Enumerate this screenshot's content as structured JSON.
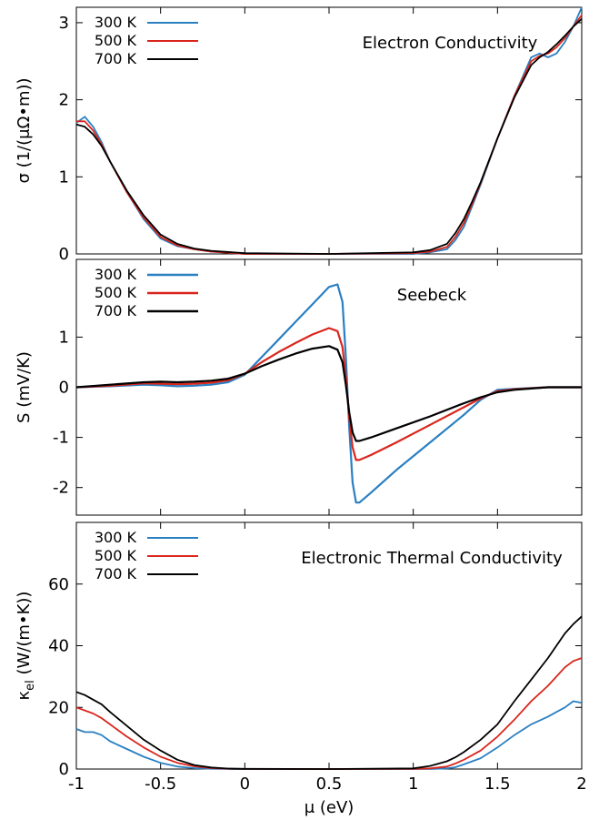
{
  "chart_data": [
    {
      "type": "line",
      "title": "Electron Conductivity",
      "xlabel": "",
      "ylabel": "σ (1/(μΩ•m))",
      "xlim": [
        -1,
        2
      ],
      "ylim": [
        0,
        3.2
      ],
      "yticks": [
        0,
        1,
        2,
        3
      ],
      "xticks": [
        -1,
        -0.5,
        0,
        0.5,
        1,
        1.5,
        2
      ],
      "show_xtick_labels": false,
      "legend": "top-left",
      "series": [
        {
          "name": "300 K",
          "color": "#2a7fc1",
          "x": [
            -1,
            -0.95,
            -0.9,
            -0.85,
            -0.8,
            -0.7,
            -0.6,
            -0.5,
            -0.4,
            -0.3,
            -0.2,
            0,
            0.5,
            1,
            1.1,
            1.2,
            1.25,
            1.3,
            1.35,
            1.4,
            1.5,
            1.6,
            1.7,
            1.75,
            1.8,
            1.85,
            1.9,
            1.95,
            2
          ],
          "y": [
            1.7,
            1.78,
            1.65,
            1.45,
            1.2,
            0.8,
            0.45,
            0.2,
            0.1,
            0.06,
            0.03,
            0.0,
            0.0,
            0.0,
            0.02,
            0.06,
            0.18,
            0.35,
            0.62,
            0.9,
            1.5,
            2.05,
            2.55,
            2.6,
            2.55,
            2.6,
            2.75,
            2.95,
            3.25
          ]
        },
        {
          "name": "500 K",
          "color": "#d9261c",
          "x": [
            -1,
            -0.95,
            -0.9,
            -0.85,
            -0.8,
            -0.7,
            -0.6,
            -0.5,
            -0.4,
            -0.3,
            -0.2,
            0,
            0.5,
            1,
            1.1,
            1.2,
            1.25,
            1.3,
            1.35,
            1.4,
            1.5,
            1.6,
            1.7,
            1.75,
            1.8,
            1.85,
            1.9,
            1.95,
            2
          ],
          "y": [
            1.72,
            1.72,
            1.6,
            1.42,
            1.2,
            0.8,
            0.47,
            0.22,
            0.11,
            0.06,
            0.03,
            0.0,
            0.0,
            0.01,
            0.03,
            0.09,
            0.22,
            0.4,
            0.65,
            0.92,
            1.5,
            2.05,
            2.5,
            2.57,
            2.6,
            2.68,
            2.8,
            2.95,
            3.1
          ]
        },
        {
          "name": "700 K",
          "color": "#000000",
          "x": [
            -1,
            -0.95,
            -0.9,
            -0.85,
            -0.8,
            -0.7,
            -0.6,
            -0.5,
            -0.4,
            -0.3,
            -0.2,
            0,
            0.5,
            1,
            1.1,
            1.2,
            1.25,
            1.3,
            1.35,
            1.4,
            1.5,
            1.6,
            1.7,
            1.75,
            1.8,
            1.85,
            1.9,
            1.95,
            2
          ],
          "y": [
            1.68,
            1.65,
            1.55,
            1.4,
            1.2,
            0.82,
            0.5,
            0.25,
            0.13,
            0.07,
            0.04,
            0.01,
            0.0,
            0.02,
            0.05,
            0.13,
            0.27,
            0.45,
            0.68,
            0.93,
            1.5,
            2.03,
            2.45,
            2.55,
            2.62,
            2.72,
            2.83,
            2.95,
            3.05
          ]
        }
      ]
    },
    {
      "type": "line",
      "title": "Seebeck",
      "xlabel": "",
      "ylabel": "S (mV/K)",
      "xlim": [
        -1,
        2
      ],
      "ylim": [
        -2.55,
        2.55
      ],
      "yticks": [
        -2,
        -1,
        0,
        1
      ],
      "xticks": [
        -1,
        -0.5,
        0,
        0.5,
        1,
        1.5,
        2
      ],
      "show_xtick_labels": false,
      "legend": "top-left",
      "series": [
        {
          "name": "300 K",
          "color": "#2a7fc1",
          "x": [
            -1,
            -0.8,
            -0.6,
            -0.5,
            -0.4,
            -0.3,
            -0.2,
            -0.1,
            0,
            0.1,
            0.2,
            0.3,
            0.4,
            0.5,
            0.55,
            0.58,
            0.6,
            0.62,
            0.64,
            0.66,
            0.68,
            0.75,
            0.9,
            1.1,
            1.3,
            1.4,
            1.5,
            1.6,
            1.8,
            2
          ],
          "y": [
            0,
            0.02,
            0.05,
            0.04,
            0.02,
            0.03,
            0.05,
            0.1,
            0.25,
            0.6,
            0.95,
            1.3,
            1.65,
            2.0,
            2.05,
            1.7,
            0.6,
            -0.8,
            -1.9,
            -2.3,
            -2.3,
            -2.1,
            -1.65,
            -1.1,
            -0.55,
            -0.25,
            -0.05,
            -0.03,
            0,
            0
          ]
        },
        {
          "name": "500 K",
          "color": "#d9261c",
          "x": [
            -1,
            -0.8,
            -0.6,
            -0.5,
            -0.4,
            -0.3,
            -0.2,
            -0.1,
            0,
            0.1,
            0.2,
            0.3,
            0.4,
            0.5,
            0.55,
            0.58,
            0.6,
            0.62,
            0.64,
            0.66,
            0.68,
            0.75,
            0.9,
            1.1,
            1.3,
            1.4,
            1.5,
            1.6,
            1.8,
            2
          ],
          "y": [
            0,
            0.03,
            0.08,
            0.07,
            0.06,
            0.07,
            0.09,
            0.14,
            0.27,
            0.5,
            0.7,
            0.88,
            1.05,
            1.18,
            1.12,
            0.8,
            0.2,
            -0.6,
            -1.2,
            -1.45,
            -1.45,
            -1.35,
            -1.1,
            -0.75,
            -0.4,
            -0.22,
            -0.08,
            -0.04,
            0,
            0
          ]
        },
        {
          "name": "700 K",
          "color": "#000000",
          "x": [
            -1,
            -0.8,
            -0.6,
            -0.5,
            -0.4,
            -0.3,
            -0.2,
            -0.1,
            0,
            0.1,
            0.2,
            0.3,
            0.4,
            0.5,
            0.55,
            0.58,
            0.6,
            0.62,
            0.64,
            0.66,
            0.68,
            0.75,
            0.9,
            1.1,
            1.3,
            1.4,
            1.5,
            1.6,
            1.8,
            2
          ],
          "y": [
            0,
            0.05,
            0.1,
            0.11,
            0.1,
            0.11,
            0.13,
            0.17,
            0.27,
            0.42,
            0.55,
            0.67,
            0.77,
            0.82,
            0.75,
            0.5,
            0.05,
            -0.5,
            -0.9,
            -1.07,
            -1.07,
            -1.0,
            -0.82,
            -0.58,
            -0.32,
            -0.2,
            -0.1,
            -0.05,
            0,
            0
          ]
        }
      ]
    },
    {
      "type": "line",
      "title": "Electronic Thermal Conductivity",
      "xlabel": "μ (eV)",
      "ylabel_main": "κ",
      "ylabel_sub": "el",
      "ylabel_rest": " (W/(m•K))",
      "xlim": [
        -1,
        2
      ],
      "ylim": [
        0,
        80
      ],
      "yticks": [
        0,
        20,
        40,
        60
      ],
      "xticks": [
        -1,
        -0.5,
        0,
        0.5,
        1,
        1.5,
        2
      ],
      "xtick_labels": [
        "-1",
        "-0.5",
        "0",
        "0.5",
        "1",
        "1.5",
        "2"
      ],
      "show_xtick_labels": true,
      "legend": "top-left",
      "series": [
        {
          "name": "300 K",
          "color": "#2a7fc1",
          "x": [
            -1,
            -0.95,
            -0.9,
            -0.85,
            -0.8,
            -0.7,
            -0.6,
            -0.5,
            -0.4,
            -0.3,
            -0.2,
            -0.1,
            0,
            0.5,
            1,
            1.1,
            1.2,
            1.25,
            1.3,
            1.4,
            1.5,
            1.6,
            1.7,
            1.8,
            1.85,
            1.9,
            1.95,
            2
          ],
          "y": [
            13,
            12,
            12,
            11,
            9,
            6.5,
            4,
            2,
            0.8,
            0.3,
            0.1,
            0.02,
            0,
            0,
            0,
            0,
            0.2,
            0.6,
            1.5,
            3.5,
            7,
            11,
            14.5,
            17,
            18.5,
            20,
            22,
            21.5
          ]
        },
        {
          "name": "500 K",
          "color": "#d9261c",
          "x": [
            -1,
            -0.95,
            -0.9,
            -0.85,
            -0.8,
            -0.7,
            -0.6,
            -0.5,
            -0.4,
            -0.3,
            -0.2,
            -0.1,
            0,
            0.5,
            1,
            1.1,
            1.2,
            1.25,
            1.3,
            1.4,
            1.5,
            1.6,
            1.7,
            1.8,
            1.85,
            1.9,
            1.95,
            2
          ],
          "y": [
            20,
            19,
            18,
            16.5,
            14.5,
            10.5,
            7,
            4,
            2,
            0.9,
            0.3,
            0.08,
            0.02,
            0,
            0.02,
            0.2,
            0.8,
            1.8,
            3,
            6,
            10.5,
            16,
            22,
            27,
            30,
            33,
            35,
            36
          ]
        },
        {
          "name": "700 K",
          "color": "#000000",
          "x": [
            -1,
            -0.95,
            -0.9,
            -0.85,
            -0.8,
            -0.7,
            -0.6,
            -0.5,
            -0.4,
            -0.3,
            -0.2,
            -0.1,
            0,
            0.5,
            1,
            1.1,
            1.2,
            1.25,
            1.3,
            1.4,
            1.5,
            1.6,
            1.7,
            1.8,
            1.85,
            1.9,
            1.95,
            2
          ],
          "y": [
            25,
            24,
            22.5,
            21,
            18.5,
            14,
            9.5,
            6,
            3,
            1.3,
            0.5,
            0.15,
            0.05,
            0,
            0.2,
            1,
            2.5,
            3.8,
            5.5,
            9.5,
            14.5,
            22,
            29,
            36,
            40,
            44,
            47,
            49.5
          ]
        }
      ]
    }
  ]
}
